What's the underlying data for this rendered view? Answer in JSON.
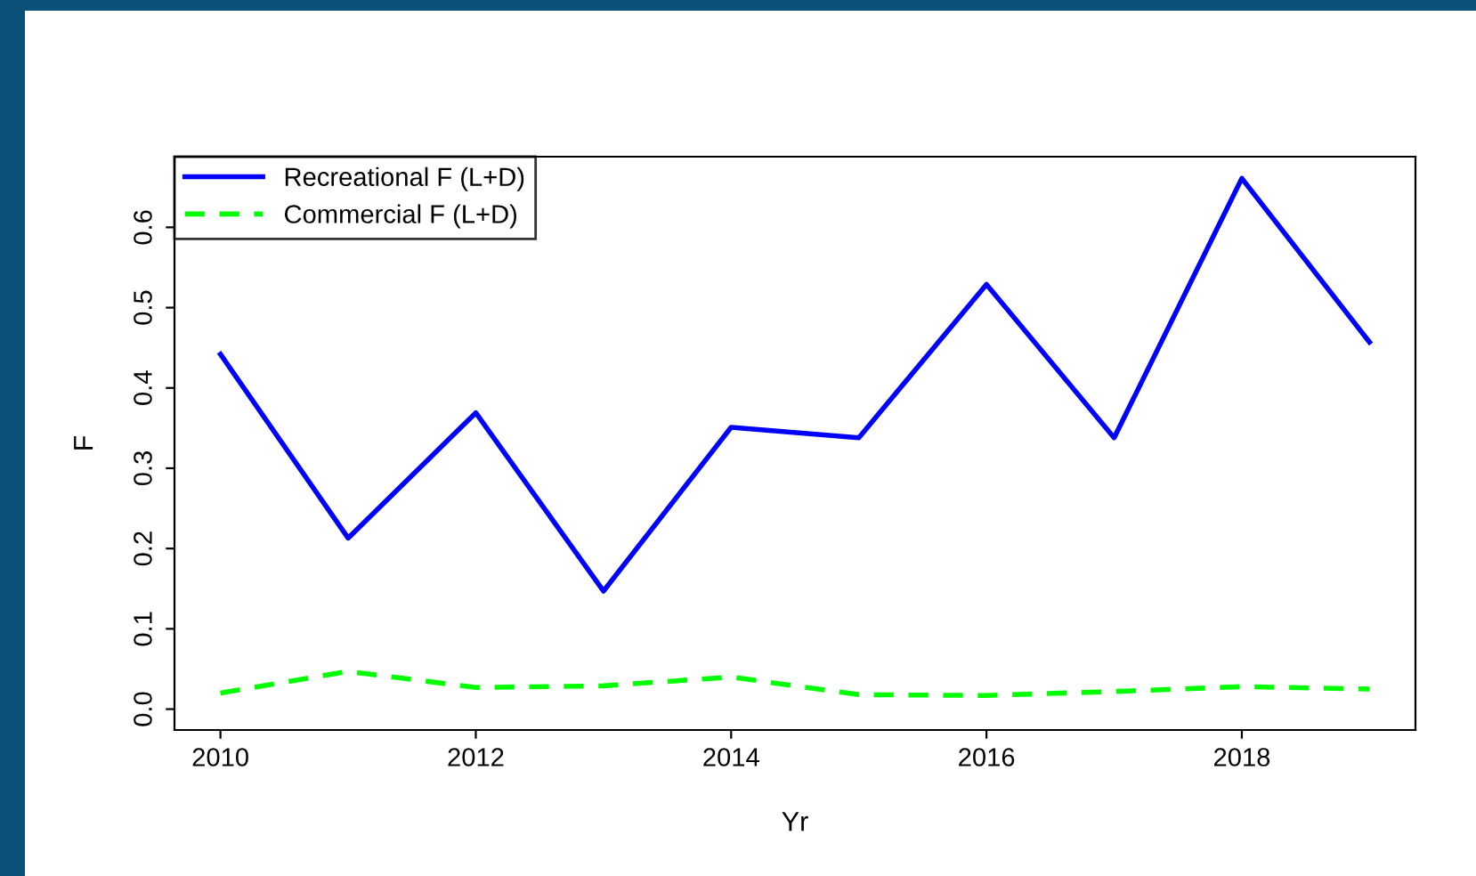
{
  "chart_data": {
    "type": "line",
    "xlabel": "Yr",
    "ylabel": "F",
    "x": [
      2010,
      2011,
      2012,
      2013,
      2014,
      2015,
      2016,
      2017,
      2018,
      2019
    ],
    "series": [
      {
        "name": "Recreational F (L+D)",
        "color": "#0000ff",
        "line_style": "solid",
        "values": [
          0.442,
          0.213,
          0.369,
          0.147,
          0.351,
          0.338,
          0.529,
          0.338,
          0.661,
          0.457
        ]
      },
      {
        "name": "Commercial F (L+D)",
        "color": "#00ff00",
        "line_style": "dashed",
        "values": [
          0.02,
          0.047,
          0.027,
          0.029,
          0.04,
          0.018,
          0.017,
          0.022,
          0.028,
          0.025
        ]
      }
    ],
    "xlim": [
      2009.64,
      2019.36
    ],
    "ylim": [
      -0.026,
      0.688
    ],
    "xticks": [
      2010,
      2012,
      2014,
      2016,
      2018
    ],
    "yticks": [
      {
        "value": 0,
        "label": "0.0"
      },
      0.1,
      0.2,
      0.3,
      0.4,
      0.5,
      0.6
    ],
    "grid": false,
    "legend": "top left",
    "marker": "none"
  }
}
